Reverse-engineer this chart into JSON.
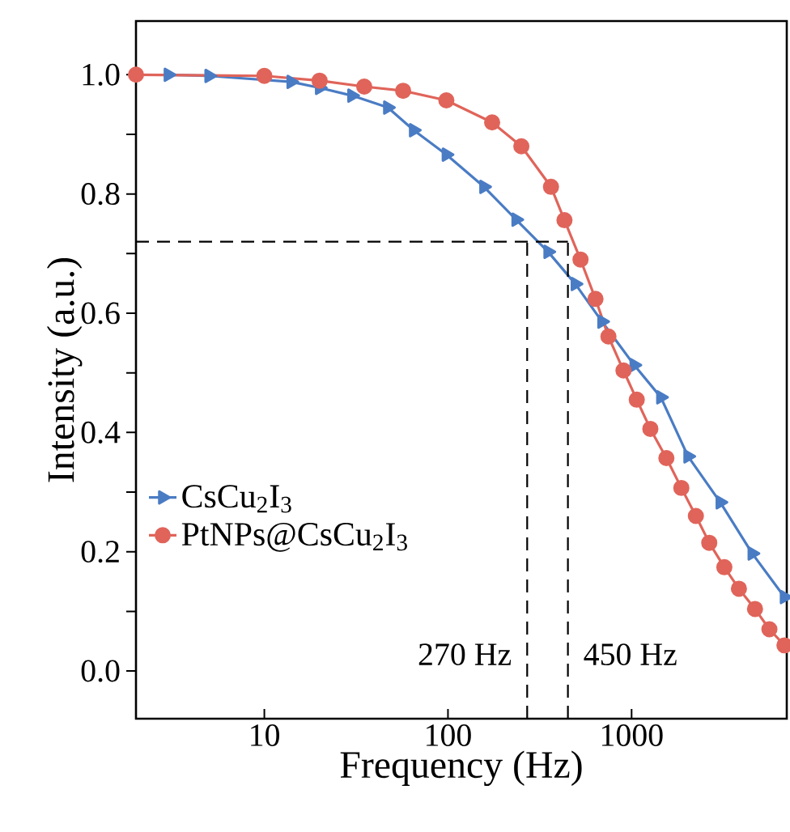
{
  "chart_data": {
    "type": "line",
    "xlabel": "Frequency (Hz)",
    "ylabel": "Intensity (a.u.)",
    "log": "x",
    "xlim": [
      2,
      7000
    ],
    "ylim": [
      -0.08,
      1.09
    ],
    "xticks": [
      10,
      100,
      1000
    ],
    "yticks": [
      {
        "value": 0,
        "label": "0.0"
      },
      {
        "value": 0.1,
        "label": null
      },
      {
        "value": 0.2,
        "label": "0.2"
      },
      {
        "value": 0.3,
        "label": null
      },
      {
        "value": 0.4,
        "label": "0.4"
      },
      {
        "value": 0.5,
        "label": null
      },
      {
        "value": 0.6,
        "label": "0.6"
      },
      {
        "value": 0.7,
        "label": null
      },
      {
        "value": 0.8,
        "label": "0.8"
      },
      {
        "value": 0.9,
        "label": null
      },
      {
        "value": 1.0,
        "label": "1.0"
      }
    ],
    "legend": "left",
    "grid": false,
    "series": [
      {
        "name": "CsCu$_{2}$I$_{3}$",
        "color": "#4a7cc4",
        "marker": "triangle",
        "x": [
          3,
          5,
          14,
          20,
          30,
          47,
          65,
          98,
          157,
          235,
          351,
          494,
          690,
          1033,
          1443,
          2030,
          3040,
          4540,
          6800
        ],
        "values": [
          1.0,
          0.998,
          0.988,
          0.978,
          0.965,
          0.945,
          0.907,
          0.866,
          0.812,
          0.757,
          0.703,
          0.649,
          0.586,
          0.513,
          0.459,
          0.36,
          0.283,
          0.197,
          0.124
        ]
      },
      {
        "name": "PtNPs@CsCu$_{2}$I$_{3}$",
        "color": "#e0645a",
        "marker": "circle",
        "x": [
          2,
          10,
          20,
          35,
          57,
          98,
          174,
          251,
          364,
          431,
          527,
          636,
          748,
          903,
          1067,
          1265,
          1547,
          1866,
          2239,
          2648,
          3200,
          3842,
          4700,
          5630,
          6800
        ],
        "values": [
          1.0,
          0.998,
          0.99,
          0.98,
          0.973,
          0.957,
          0.92,
          0.88,
          0.812,
          0.756,
          0.69,
          0.624,
          0.561,
          0.504,
          0.455,
          0.406,
          0.357,
          0.307,
          0.26,
          0.215,
          0.174,
          0.138,
          0.104,
          0.07,
          0.043
        ]
      }
    ],
    "ref_lines": [
      {
        "axis": "y",
        "value": 0.72,
        "line_style": "dashed",
        "color": "#000000"
      },
      {
        "axis": "x",
        "value": 270,
        "label": "270 Hz",
        "line_style": "dashed",
        "color": "#000000"
      },
      {
        "axis": "x",
        "value": 450,
        "label": "450 Hz",
        "line_style": "dashed",
        "color": "#000000"
      }
    ]
  }
}
